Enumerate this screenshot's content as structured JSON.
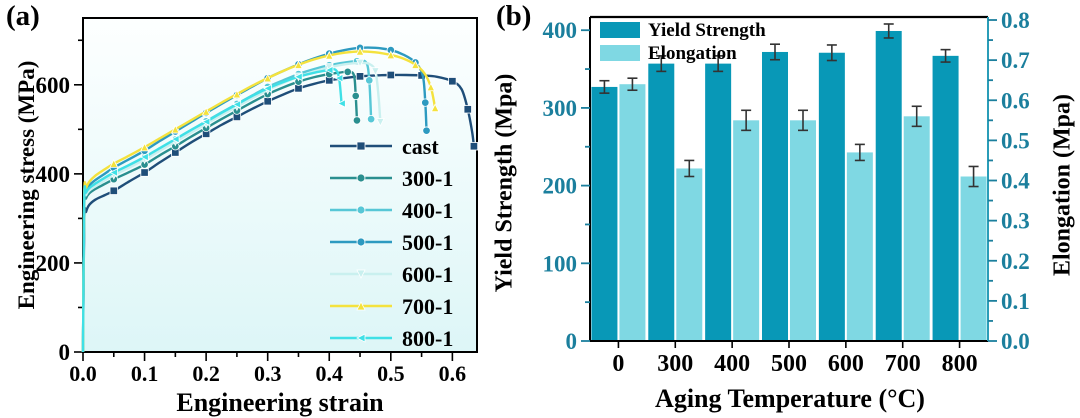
{
  "figure": {
    "panel_a": {
      "tag": "(a)",
      "xlabel": "Engineering strain",
      "ylabel": "Engineering stress (MPa)"
    },
    "panel_b": {
      "tag": "(b)",
      "xlabel": "Aging Temperature (°C)",
      "ylabel_left": "Yield Strength (Mpa)",
      "ylabel_right": "Elongation (Mpa)"
    }
  },
  "chart_data": [
    {
      "type": "line",
      "title": "",
      "xlabel": "Engineering strain",
      "ylabel": "Engineering stress (MPa)",
      "xlim": [
        0,
        0.64
      ],
      "ylim": [
        0,
        750
      ],
      "x_ticks": [
        "0.0",
        "0.1",
        "0.2",
        "0.3",
        "0.4",
        "0.5",
        "0.6"
      ],
      "x_minor_step": 0.05,
      "y_ticks": [
        "0",
        "200",
        "400",
        "600"
      ],
      "y_minor_step": 100,
      "grid": false,
      "legend_position": "lower right",
      "plot_bg_top": "#fdffff",
      "plot_bg_bottom": "#ddf6f7",
      "axis_color": "#000000",
      "series": [
        {
          "name": "cast",
          "color": "#1f4e79",
          "marker": "square",
          "points": [
            [
              0,
              0
            ],
            [
              0.002,
              295
            ],
            [
              0.005,
              315
            ],
            [
              0.01,
              330
            ],
            [
              0.02,
              342
            ],
            [
              0.035,
              352
            ],
            [
              0.05,
              362
            ],
            [
              0.075,
              383
            ],
            [
              0.1,
              403
            ],
            [
              0.125,
              426
            ],
            [
              0.15,
              448
            ],
            [
              0.175,
              470
            ],
            [
              0.2,
              490
            ],
            [
              0.225,
              510
            ],
            [
              0.25,
              528
            ],
            [
              0.275,
              546
            ],
            [
              0.3,
              563
            ],
            [
              0.325,
              578
            ],
            [
              0.35,
              592
            ],
            [
              0.375,
              602
            ],
            [
              0.4,
              610
            ],
            [
              0.425,
              615
            ],
            [
              0.45,
              619
            ],
            [
              0.475,
              621
            ],
            [
              0.5,
              622
            ],
            [
              0.525,
              622
            ],
            [
              0.55,
              621
            ],
            [
              0.575,
              618
            ],
            [
              0.6,
              608
            ],
            [
              0.615,
              590
            ],
            [
              0.625,
              545
            ],
            [
              0.632,
              495
            ],
            [
              0.635,
              462
            ]
          ]
        },
        {
          "name": "300-1",
          "color": "#2a8f8f",
          "marker": "circle",
          "points": [
            [
              0,
              0
            ],
            [
              0.002,
              325
            ],
            [
              0.005,
              345
            ],
            [
              0.01,
              356
            ],
            [
              0.02,
              366
            ],
            [
              0.035,
              377
            ],
            [
              0.05,
              388
            ],
            [
              0.075,
              404
            ],
            [
              0.1,
              421
            ],
            [
              0.125,
              442
            ],
            [
              0.15,
              462
            ],
            [
              0.175,
              483
            ],
            [
              0.2,
              503
            ],
            [
              0.225,
              523
            ],
            [
              0.25,
              542
            ],
            [
              0.275,
              561
            ],
            [
              0.3,
              579
            ],
            [
              0.325,
              594
            ],
            [
              0.35,
              607
            ],
            [
              0.375,
              617
            ],
            [
              0.4,
              624
            ],
            [
              0.415,
              627
            ],
            [
              0.43,
              629
            ],
            [
              0.44,
              622
            ],
            [
              0.443,
              575
            ],
            [
              0.445,
              520
            ]
          ]
        },
        {
          "name": "400-1",
          "color": "#57c7d6",
          "marker": "circle",
          "points": [
            [
              0,
              0
            ],
            [
              0.002,
              340
            ],
            [
              0.005,
              358
            ],
            [
              0.01,
              368
            ],
            [
              0.02,
              378
            ],
            [
              0.035,
              390
            ],
            [
              0.05,
              402
            ],
            [
              0.075,
              419
            ],
            [
              0.1,
              437
            ],
            [
              0.125,
              457
            ],
            [
              0.15,
              477
            ],
            [
              0.175,
              498
            ],
            [
              0.2,
              518
            ],
            [
              0.225,
              538
            ],
            [
              0.25,
              557
            ],
            [
              0.275,
              576
            ],
            [
              0.3,
              595
            ],
            [
              0.325,
              610
            ],
            [
              0.35,
              624
            ],
            [
              0.375,
              635
            ],
            [
              0.4,
              644
            ],
            [
              0.425,
              650
            ],
            [
              0.445,
              653
            ],
            [
              0.46,
              650
            ],
            [
              0.465,
              610
            ],
            [
              0.468,
              523
            ]
          ]
        },
        {
          "name": "500-1",
          "color": "#2d9ac0",
          "marker": "circle",
          "points": [
            [
              0,
              0
            ],
            [
              0.002,
              345
            ],
            [
              0.005,
              362
            ],
            [
              0.01,
              374
            ],
            [
              0.02,
              386
            ],
            [
              0.035,
              400
            ],
            [
              0.05,
              414
            ],
            [
              0.075,
              433
            ],
            [
              0.1,
              452
            ],
            [
              0.125,
              474
            ],
            [
              0.15,
              495
            ],
            [
              0.175,
              516
            ],
            [
              0.2,
              537
            ],
            [
              0.225,
              557
            ],
            [
              0.25,
              577
            ],
            [
              0.275,
              596
            ],
            [
              0.3,
              615
            ],
            [
              0.325,
              631
            ],
            [
              0.35,
              646
            ],
            [
              0.375,
              659
            ],
            [
              0.4,
              670
            ],
            [
              0.425,
              678
            ],
            [
              0.45,
              683
            ],
            [
              0.475,
              683
            ],
            [
              0.5,
              678
            ],
            [
              0.52,
              668
            ],
            [
              0.54,
              650
            ],
            [
              0.552,
              620
            ],
            [
              0.556,
              560
            ],
            [
              0.558,
              497
            ]
          ]
        },
        {
          "name": "600-1",
          "color": "#c9f0ef",
          "marker": "triangle-down",
          "points": [
            [
              0,
              0
            ],
            [
              0.002,
              338
            ],
            [
              0.005,
              352
            ],
            [
              0.01,
              362
            ],
            [
              0.02,
              372
            ],
            [
              0.035,
              385
            ],
            [
              0.05,
              397
            ],
            [
              0.075,
              414
            ],
            [
              0.1,
              432
            ],
            [
              0.125,
              452
            ],
            [
              0.15,
              472
            ],
            [
              0.175,
              492
            ],
            [
              0.2,
              512
            ],
            [
              0.225,
              532
            ],
            [
              0.25,
              551
            ],
            [
              0.275,
              570
            ],
            [
              0.3,
              588
            ],
            [
              0.325,
              604
            ],
            [
              0.35,
              618
            ],
            [
              0.375,
              630
            ],
            [
              0.4,
              639
            ],
            [
              0.425,
              646
            ],
            [
              0.45,
              649
            ],
            [
              0.465,
              647
            ],
            [
              0.475,
              630
            ],
            [
              0.48,
              575
            ],
            [
              0.483,
              516
            ]
          ]
        },
        {
          "name": "700-1",
          "color": "#f4e23d",
          "marker": "triangle-up",
          "points": [
            [
              0,
              0
            ],
            [
              0.002,
              350
            ],
            [
              0.005,
              368
            ],
            [
              0.01,
              382
            ],
            [
              0.02,
              396
            ],
            [
              0.035,
              410
            ],
            [
              0.05,
              423
            ],
            [
              0.075,
              441
            ],
            [
              0.1,
              460
            ],
            [
              0.125,
              480
            ],
            [
              0.15,
              500
            ],
            [
              0.175,
              520
            ],
            [
              0.2,
              540
            ],
            [
              0.225,
              560
            ],
            [
              0.25,
              579
            ],
            [
              0.275,
              598
            ],
            [
              0.3,
              615
            ],
            [
              0.325,
              631
            ],
            [
              0.35,
              645
            ],
            [
              0.375,
              657
            ],
            [
              0.4,
              666
            ],
            [
              0.425,
              672
            ],
            [
              0.45,
              675
            ],
            [
              0.475,
              673
            ],
            [
              0.5,
              667
            ],
            [
              0.52,
              659
            ],
            [
              0.54,
              645
            ],
            [
              0.555,
              625
            ],
            [
              0.565,
              595
            ],
            [
              0.572,
              548
            ]
          ]
        },
        {
          "name": "800-1",
          "color": "#3fe0e6",
          "marker": "triangle-left",
          "points": [
            [
              0,
              0
            ],
            [
              0.002,
              342
            ],
            [
              0.005,
              358
            ],
            [
              0.01,
              368
            ],
            [
              0.02,
              378
            ],
            [
              0.035,
              391
            ],
            [
              0.05,
              403
            ],
            [
              0.075,
              420
            ],
            [
              0.1,
              438
            ],
            [
              0.125,
              458
            ],
            [
              0.15,
              478
            ],
            [
              0.175,
              498
            ],
            [
              0.2,
              517
            ],
            [
              0.225,
              537
            ],
            [
              0.25,
              556
            ],
            [
              0.275,
              575
            ],
            [
              0.3,
              592
            ],
            [
              0.325,
              606
            ],
            [
              0.35,
              618
            ],
            [
              0.375,
              627
            ],
            [
              0.4,
              633
            ],
            [
              0.41,
              634
            ],
            [
              0.416,
              615
            ],
            [
              0.42,
              558
            ]
          ]
        }
      ]
    },
    {
      "type": "bar",
      "title": "",
      "xlabel": "Aging Temperature (°C)",
      "categories": [
        "0",
        "300",
        "400",
        "500",
        "600",
        "700",
        "800"
      ],
      "grid": false,
      "legend_position": "upper left",
      "tick_color": "#1b7f9d",
      "right_axis_color": "#2a9db8",
      "left_axis": {
        "label": "Yield Strength (Mpa)",
        "ticks": [
          "0",
          "100",
          "200",
          "300",
          "400"
        ],
        "minor_step": 50,
        "max": 417
      },
      "right_axis": {
        "label": "Elongation (Mpa)",
        "ticks": [
          "0.0",
          "0.1",
          "0.2",
          "0.3",
          "0.4",
          "0.5",
          "0.6",
          "0.7",
          "0.8"
        ],
        "minor_step": 0.05,
        "max": 0.8075
      },
      "series": [
        {
          "name": "Yield Strength",
          "axis": "left",
          "color": "#0898b7",
          "values": [
            327,
            357,
            357,
            372,
            371,
            399,
            367
          ],
          "errors": [
            8,
            10,
            10,
            10,
            10,
            9,
            8
          ]
        },
        {
          "name": "Elongation",
          "axis": "right",
          "color": "#7fd8e3",
          "values": [
            0.64,
            0.43,
            0.55,
            0.55,
            0.47,
            0.56,
            0.41
          ],
          "errors": [
            0.015,
            0.02,
            0.025,
            0.025,
            0.02,
            0.025,
            0.025
          ]
        }
      ]
    }
  ]
}
